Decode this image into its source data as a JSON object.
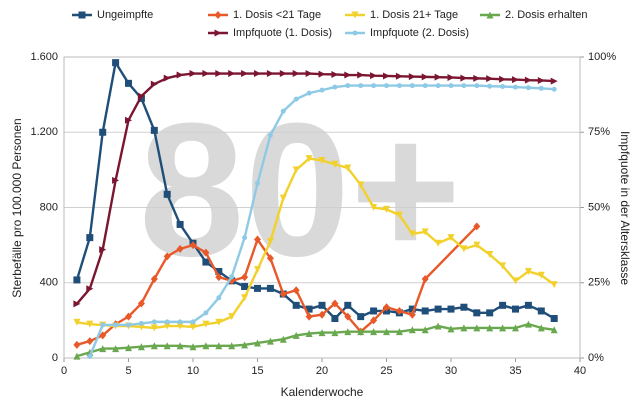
{
  "chart_data": {
    "type": "line",
    "watermark": "80+",
    "xlabel": "Kalenderwoche",
    "ylabel": "Sterbefälle pro 100.000 Personen",
    "y2label": "Impfquote in der Altersklasse",
    "x": [
      1,
      2,
      3,
      4,
      5,
      6,
      7,
      8,
      9,
      10,
      11,
      12,
      13,
      14,
      15,
      16,
      17,
      18,
      19,
      20,
      21,
      22,
      23,
      24,
      25,
      26,
      27,
      28,
      29,
      30,
      31,
      32,
      33,
      34,
      35,
      36,
      37,
      38
    ],
    "xlim": [
      0,
      40
    ],
    "xticks": [
      0,
      5,
      10,
      15,
      20,
      25,
      30,
      35,
      40
    ],
    "ylim": [
      0,
      1600
    ],
    "yticks": [
      0,
      400,
      800,
      {
        "value": 1200,
        "label": "1.200"
      },
      {
        "value": 1600,
        "label": "1.600"
      }
    ],
    "y2lim": [
      0,
      100
    ],
    "y2ticks": [
      {
        "value": 0,
        "label": "0%"
      },
      {
        "value": 25,
        "label": "25%"
      },
      {
        "value": 50,
        "label": "50%"
      },
      {
        "value": 75,
        "label": "75%"
      },
      {
        "value": 100,
        "label": "100%"
      }
    ],
    "grid": true,
    "series": [
      {
        "name": "Ungeimpfte",
        "color": "#1f4e79",
        "marker": "square",
        "values": [
          415,
          640,
          1200,
          1570,
          1460,
          1380,
          1210,
          870,
          710,
          610,
          510,
          460,
          410,
          380,
          370,
          370,
          340,
          280,
          260,
          280,
          210,
          280,
          220,
          250,
          250,
          240,
          260,
          250,
          260,
          260,
          270,
          240,
          240,
          280,
          260,
          280,
          250,
          210
        ]
      },
      {
        "name": "1. Dosis <21 Tage",
        "color": "#e8592a",
        "marker": "diamond",
        "x": [
          1,
          2,
          3,
          4,
          5,
          6,
          7,
          8,
          9,
          10,
          11,
          12,
          13,
          14,
          15,
          16,
          17,
          18,
          19,
          20,
          21,
          22,
          23,
          24,
          25,
          26,
          27,
          28,
          32
        ],
        "values": [
          70,
          90,
          120,
          180,
          220,
          290,
          420,
          540,
          580,
          600,
          560,
          430,
          410,
          430,
          630,
          530,
          340,
          360,
          220,
          230,
          290,
          220,
          140,
          200,
          270,
          250,
          230,
          420,
          700
        ]
      },
      {
        "name": "1. Dosis 21+ Tage",
        "color": "#f2d12c",
        "marker": "triangle-down",
        "values": [
          190,
          180,
          175,
          170,
          170,
          165,
          160,
          170,
          170,
          165,
          180,
          190,
          220,
          320,
          470,
          620,
          850,
          1000,
          1060,
          1050,
          1030,
          1010,
          920,
          800,
          790,
          760,
          660,
          670,
          610,
          640,
          580,
          600,
          550,
          490,
          410,
          460,
          440,
          390
        ]
      },
      {
        "name": "2. Dosis erhalten",
        "color": "#6aa84f",
        "marker": "triangle",
        "values": [
          10,
          30,
          50,
          50,
          55,
          60,
          65,
          65,
          65,
          60,
          65,
          65,
          65,
          70,
          80,
          90,
          100,
          120,
          130,
          135,
          135,
          140,
          140,
          140,
          140,
          140,
          150,
          150,
          170,
          155,
          160,
          160,
          160,
          160,
          160,
          180,
          160,
          150
        ]
      },
      {
        "name": "Impfquote (1. Dosis)",
        "color": "#7b1530",
        "marker": "arrow",
        "axis": "y2",
        "values": [
          18,
          23,
          36,
          59,
          79,
          87,
          91,
          93,
          94,
          94.5,
          94.5,
          94.5,
          94.5,
          94.5,
          94.5,
          94.5,
          94.5,
          94.5,
          94.5,
          94.3,
          94.2,
          94,
          94,
          93.8,
          93.7,
          93.6,
          93.5,
          93.4,
          93.3,
          93.2,
          93,
          92.9,
          92.8,
          92.6,
          92.5,
          92.3,
          92.2,
          92
        ]
      },
      {
        "name": "Impfquote (2. Dosis)",
        "color": "#8ecae6",
        "marker": "circle",
        "axis": "y2",
        "x": [
          2,
          3,
          4,
          5,
          6,
          7,
          8,
          9,
          10,
          11,
          12,
          13,
          14,
          15,
          16,
          17,
          18,
          19,
          20,
          21,
          22,
          23,
          24,
          25,
          26,
          27,
          28,
          29,
          30,
          31,
          32,
          33,
          34,
          35,
          36,
          37,
          38
        ],
        "values": [
          0.5,
          11,
          11,
          11,
          11.5,
          12,
          12,
          12,
          12,
          15,
          20,
          27,
          40,
          58,
          74,
          82,
          86,
          88,
          89,
          90,
          90.5,
          90.5,
          90.5,
          90.5,
          90.5,
          90.5,
          90.5,
          90.5,
          90.5,
          90.5,
          90.5,
          90.3,
          90.2,
          90,
          89.8,
          89.6,
          89.3
        ]
      }
    ]
  }
}
